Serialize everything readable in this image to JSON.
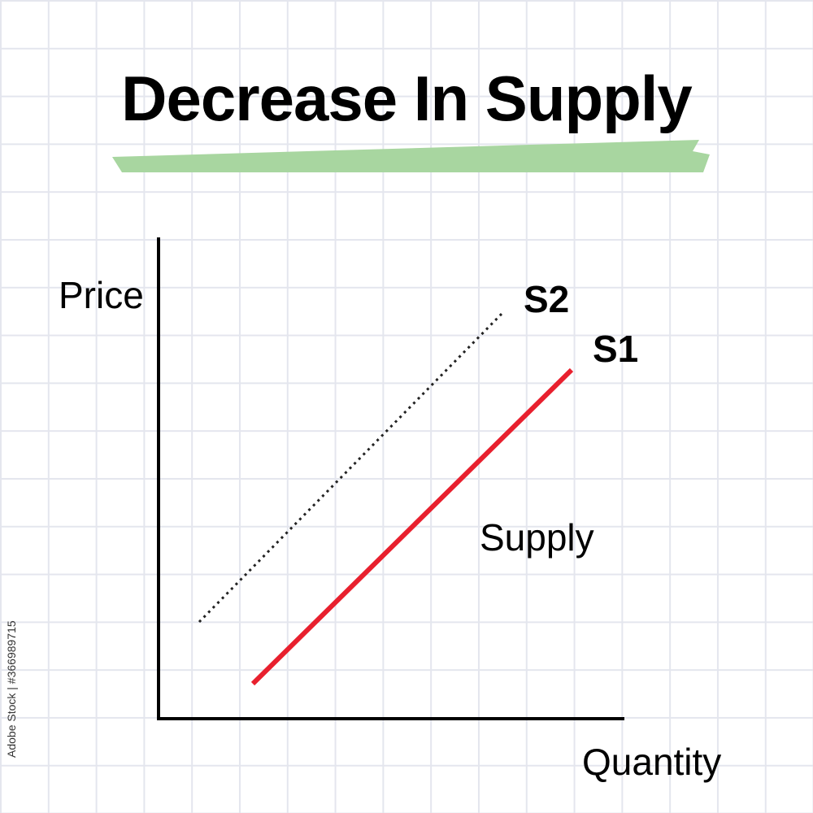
{
  "title": "Decrease In Supply",
  "colors": {
    "highlight": "#a8d6a0",
    "s1_line": "#e8202e",
    "s2_line": "#222222",
    "axes": "#000000",
    "grid": "#e4e6ee"
  },
  "axes": {
    "y_label": "Price",
    "x_label": "Quantity"
  },
  "curves": {
    "s1_label": "S1",
    "s2_label": "S2",
    "supply_label": "Supply"
  },
  "chart_data": {
    "type": "line",
    "title": "Decrease In Supply",
    "xlabel": "Quantity",
    "ylabel": "Price",
    "grid": true,
    "series": [
      {
        "name": "S1",
        "style": "solid",
        "color": "#e8202e"
      },
      {
        "name": "S2",
        "style": "dotted",
        "color": "#222222"
      }
    ],
    "annotations": [
      "Supply"
    ]
  },
  "watermark": "Adobe Stock | #366989715"
}
